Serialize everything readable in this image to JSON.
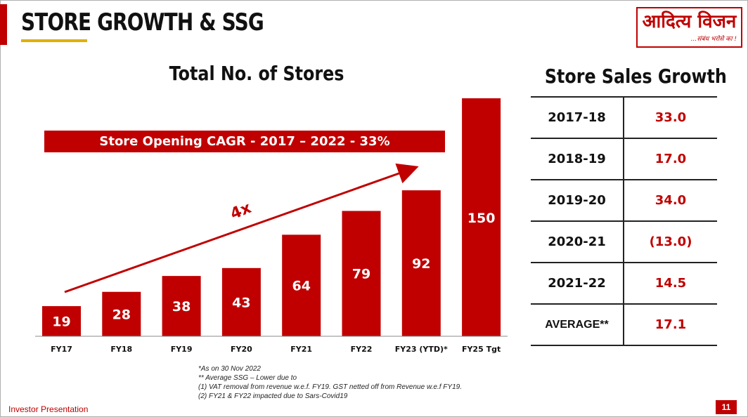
{
  "header": {
    "title": "STORE GROWTH & SSG"
  },
  "logo": {
    "name": "आदित्य विजन",
    "tagline": "...संबंध भरोसे का !"
  },
  "chart_data": {
    "type": "bar",
    "title": "Total No. of Stores",
    "categories": [
      "FY17",
      "FY18",
      "FY19",
      "FY20",
      "FY21",
      "FY22",
      "FY23 (YTD)*",
      "FY25 Tgt"
    ],
    "values": [
      19,
      28,
      38,
      43,
      64,
      79,
      92,
      150
    ],
    "ylim": [
      0,
      150
    ],
    "xlabel": "",
    "ylabel": "",
    "grid": false,
    "bar_color": "#c00000",
    "annotations": {
      "cagr_banner": "Store Opening CAGR - 2017 – 2022 - 33%",
      "arrow_label": "4x"
    }
  },
  "ssg_table": {
    "title": "Store Sales Growth",
    "rows": [
      {
        "year": "2017-18",
        "value": "33.0"
      },
      {
        "year": "2018-19",
        "value": "17.0"
      },
      {
        "year": "2019-20",
        "value": "34.0"
      },
      {
        "year": "2020-21",
        "value": "(13.0)"
      },
      {
        "year": "2021-22",
        "value": "14.5"
      },
      {
        "year": "AVERAGE**",
        "value": "17.1"
      }
    ]
  },
  "footnotes": [
    "*As on 30 Nov 2022",
    "** Average SSG – Lower due to",
    "(1)  VAT removal from revenue w.e.f. FY19. GST netted off from Revenue w.e.f  FY19.",
    "(2)  FY21 & FY22 impacted due to Sars-Covid19"
  ],
  "footer": {
    "label": "Investor Presentation",
    "page": "11"
  },
  "colors": {
    "accent": "#c00000",
    "underline": "#e0b000"
  }
}
